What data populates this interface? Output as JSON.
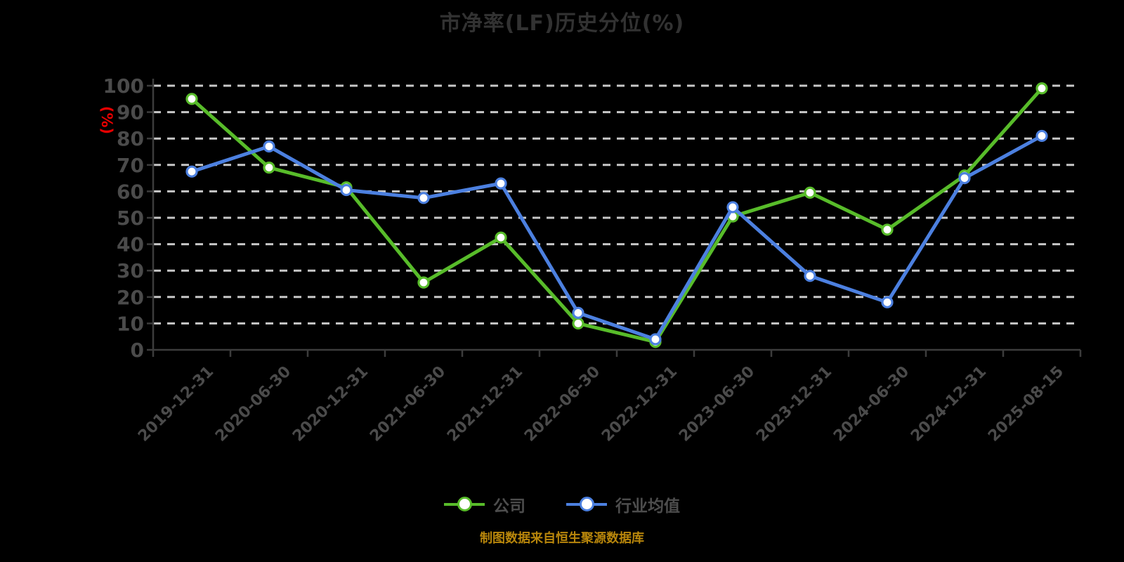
{
  "chart": {
    "title": "市净率(LF)历史分位(%)",
    "y_unit_label": "(%)",
    "source_note": "制图数据来自恒生聚源数据库",
    "colors": {
      "background": "#000000",
      "title": "#323232",
      "axis": "#3c3c3c",
      "tick_label": "#4b4b4b",
      "grid": "#c8c8c8",
      "y_unit_label": "#e60000",
      "source_note": "#b8860b",
      "legend_label": "#4d4d4d",
      "company_series": "#58bc2a",
      "industry_series": "#4c80e0"
    }
  },
  "chart_data": {
    "type": "line",
    "title": "市净率(LF)历史分位(%)",
    "xlabel": "",
    "ylabel": "(%)",
    "categories": [
      "2019-12-31",
      "2020-06-30",
      "2020-12-31",
      "2021-06-30",
      "2021-12-31",
      "2022-06-30",
      "2022-12-31",
      "2023-06-30",
      "2023-12-31",
      "2024-06-30",
      "2024-12-31",
      "2025-08-15"
    ],
    "series": [
      {
        "name": "公司",
        "color": "#58bc2a",
        "values": [
          95,
          69,
          61.5,
          25.5,
          42.5,
          10,
          3,
          50.5,
          59.5,
          45.5,
          66,
          99
        ]
      },
      {
        "name": "行业均值",
        "color": "#4c80e0",
        "values": [
          67.5,
          77,
          60.5,
          57.5,
          63,
          14,
          4,
          54,
          28,
          18,
          65,
          81
        ]
      }
    ],
    "ylim": [
      0,
      100
    ],
    "y_tick_step": 10,
    "grid": "dashed-horizontal",
    "legend_position": "bottom",
    "marker": "circle-white-fill"
  }
}
